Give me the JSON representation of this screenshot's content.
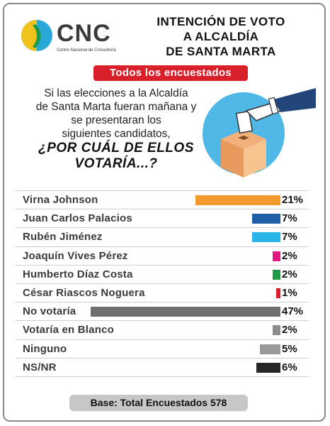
{
  "logo": {
    "text": "CNC",
    "subtitle": "Centro Nacional de Consultoría"
  },
  "title_lines": [
    "INTENCIÓN DE VOTO",
    "A ALCALDÍA",
    "DE SANTA MARTA"
  ],
  "banner": "Todos los encuestados",
  "question": {
    "lines": [
      "Si las elecciones a la Alcaldía",
      "de Santa Marta fueran mañana y",
      "se presentaran los",
      "siguientes candidatos,"
    ],
    "emphasis_lines": [
      "¿POR CUÁL DE ELLOS",
      "VOTARÍA...?"
    ]
  },
  "colors": {
    "orange": "#f39a2c",
    "blue": "#1f5fa8",
    "cyan": "#2bb4e8",
    "magenta": "#e5167f",
    "green": "#1f9a4b",
    "red": "#d8202a",
    "gray": "#6f6f6f",
    "light_gray": "#9a9a9a",
    "black": "#262626",
    "banner": "#d8202a"
  },
  "chart_data": {
    "type": "bar",
    "orientation": "horizontal",
    "categories": [
      "Virna Johnson",
      "Juan Carlos Palacios",
      "Rubén Jiménez",
      "Joaquín Vives Pérez",
      "Humberto Díaz Costa",
      "César Riascos Noguera",
      "No votaría",
      "Votaría en Blanco",
      "Ninguno",
      "NS/NR"
    ],
    "values": [
      21,
      7,
      7,
      2,
      2,
      1,
      47,
      2,
      5,
      6
    ],
    "value_labels": [
      "21%",
      "7%",
      "7%",
      "2%",
      "2%",
      "1%",
      "47%",
      "2%",
      "5%",
      "6%"
    ],
    "bar_colors": [
      "#f39a2c",
      "#1f5fa8",
      "#2bb4e8",
      "#e5167f",
      "#1f9a4b",
      "#d8202a",
      "#6f6f6f",
      "#8c8c8c",
      "#9a9a9a",
      "#262626"
    ],
    "unit": "%",
    "xlim": [
      0,
      47
    ]
  },
  "footer": "Base: Total Encuestados 578"
}
